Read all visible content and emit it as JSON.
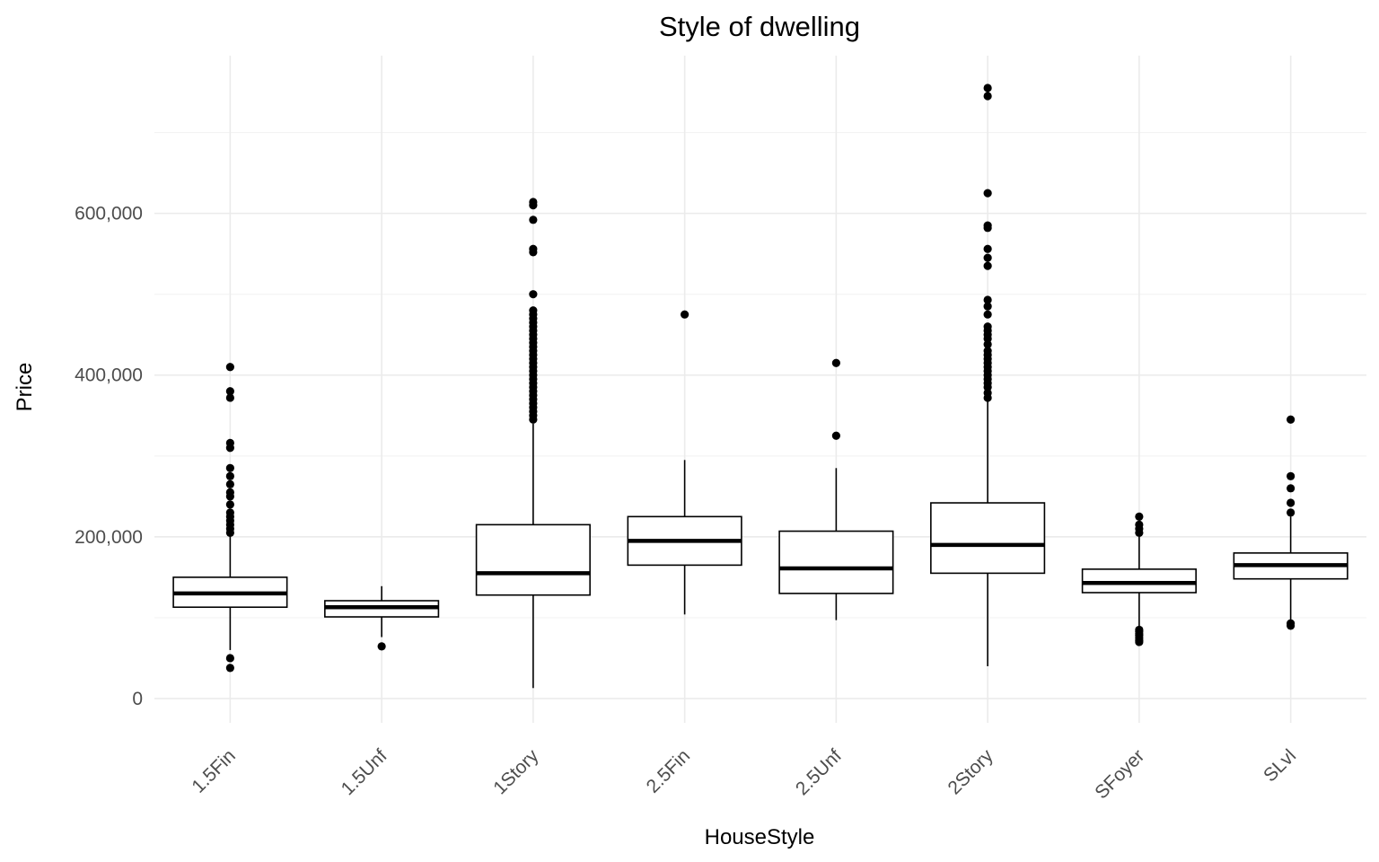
{
  "chart_data": {
    "type": "box",
    "title": "Style of dwelling",
    "xlabel": "HouseStyle",
    "ylabel": "Price",
    "ylim": [
      -30000,
      795000
    ],
    "y_ticks": [
      0,
      200000,
      400000,
      600000
    ],
    "y_tick_labels": [
      "0",
      "200,000",
      "400,000",
      "600,000"
    ],
    "grid": true,
    "categories": [
      "1.5Fin",
      "1.5Unf",
      "1Story",
      "2.5Fin",
      "2.5Unf",
      "2Story",
      "SFoyer",
      "SLvl"
    ],
    "boxes": [
      {
        "category": "1.5Fin",
        "whisker_low": 60000,
        "q1": 113000,
        "median": 130000,
        "q3": 150000,
        "whisker_high": 205000,
        "outliers": [
          37900,
          50000,
          205000,
          210000,
          215000,
          220000,
          225000,
          230000,
          240000,
          250000,
          255000,
          265000,
          275000,
          285000,
          310000,
          316000,
          372000,
          380000,
          410000
        ]
      },
      {
        "category": "1.5Unf",
        "whisker_low": 76000,
        "q1": 101000,
        "median": 113000,
        "q3": 121000,
        "whisker_high": 139000,
        "outliers": [
          64500
        ]
      },
      {
        "category": "1Story",
        "whisker_low": 13000,
        "q1": 128000,
        "median": 155000,
        "q3": 215000,
        "whisker_high": 340000,
        "outliers": [
          345000,
          350000,
          355000,
          360000,
          365000,
          370000,
          375000,
          380000,
          385000,
          390000,
          395000,
          400000,
          405000,
          410000,
          415000,
          420000,
          425000,
          430000,
          435000,
          440000,
          445000,
          450000,
          455000,
          460000,
          465000,
          470000,
          475000,
          480000,
          500000,
          552000,
          556000,
          592000,
          610000,
          614000
        ]
      },
      {
        "category": "2.5Fin",
        "whisker_low": 104000,
        "q1": 165000,
        "median": 195000,
        "q3": 225000,
        "whisker_high": 295000,
        "outliers": [
          475000
        ]
      },
      {
        "category": "2.5Unf",
        "whisker_low": 97000,
        "q1": 130000,
        "median": 161000,
        "q3": 207000,
        "whisker_high": 285000,
        "outliers": [
          325000,
          415000
        ]
      },
      {
        "category": "2Story",
        "whisker_low": 40000,
        "q1": 155000,
        "median": 190000,
        "q3": 242000,
        "whisker_high": 367000,
        "outliers": [
          372000,
          378000,
          385000,
          390000,
          395000,
          400000,
          405000,
          410000,
          415000,
          420000,
          425000,
          430000,
          438000,
          445000,
          450000,
          455000,
          460000,
          475000,
          485000,
          493000,
          535000,
          545000,
          556000,
          582000,
          585000,
          625000,
          745000,
          755000
        ]
      },
      {
        "category": "SFoyer",
        "whisker_low": 88000,
        "q1": 131000,
        "median": 143000,
        "q3": 160000,
        "whisker_high": 200000,
        "outliers": [
          70000,
          72000,
          75000,
          78000,
          80000,
          83000,
          85000,
          205000,
          210000,
          215000,
          225000
        ]
      },
      {
        "category": "SLvl",
        "whisker_low": 96000,
        "q1": 148000,
        "median": 165000,
        "q3": 180000,
        "whisker_high": 225000,
        "outliers": [
          90000,
          93000,
          230000,
          242000,
          260000,
          275000,
          345000
        ]
      }
    ]
  }
}
